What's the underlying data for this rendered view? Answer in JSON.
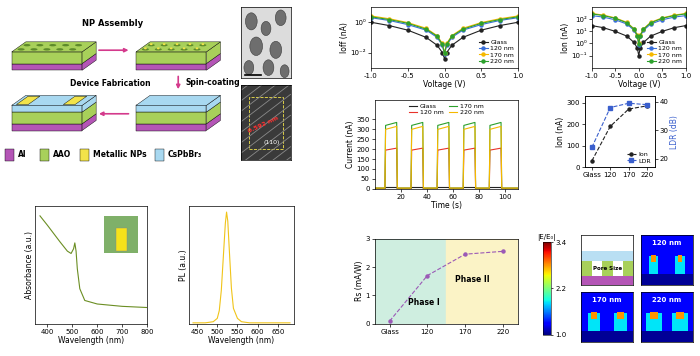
{
  "schematic": {
    "steps": [
      "NP Assembly",
      "Spin-coating",
      "Device Fabrication"
    ],
    "legend": [
      {
        "label": "Al",
        "color": "#b455b6"
      },
      {
        "label": "AAO",
        "color": "#a8d05a"
      },
      {
        "label": "Metallic NPs",
        "color": "#f2e34a"
      },
      {
        "label": "CsPbBr₃",
        "color": "#a8d8f0"
      }
    ]
  },
  "tem": {
    "spacing": "0.592 nm",
    "plane": "(110)"
  },
  "chart_data": [
    {
      "type": "line",
      "x_label": "Wavelength (nm)",
      "y_label": "Absorbance (a.u.)",
      "x": [
        370,
        400,
        450,
        480,
        495,
        505,
        510,
        515,
        520,
        530,
        550,
        600,
        700,
        800
      ],
      "values": [
        0.92,
        0.84,
        0.7,
        0.62,
        0.6,
        0.64,
        0.69,
        0.62,
        0.47,
        0.3,
        0.2,
        0.17,
        0.15,
        0.14
      ],
      "color": "#6b8e23",
      "xlim": [
        350,
        800
      ],
      "xticks": [
        400,
        500,
        600,
        700,
        800
      ],
      "ylim": [
        0,
        1
      ],
      "tick_labels": "x"
    },
    {
      "type": "line",
      "x_label": "Wavelength (nm)",
      "y_label": "PL (a.u.)",
      "x": [
        440,
        470,
        490,
        500,
        505,
        510,
        515,
        520,
        523,
        526,
        530,
        535,
        540,
        550,
        560,
        580,
        620,
        680
      ],
      "values": [
        0.01,
        0.01,
        0.02,
        0.05,
        0.12,
        0.3,
        0.6,
        0.9,
        1.0,
        0.92,
        0.65,
        0.32,
        0.14,
        0.05,
        0.02,
        0.01,
        0.01,
        0.01
      ],
      "color": "#f0c419",
      "xlim": [
        430,
        690
      ],
      "xticks": [
        450,
        500,
        550,
        600,
        650
      ],
      "ylim": [
        0,
        1.05
      ],
      "tick_labels": "x"
    },
    {
      "type": "line",
      "x_label": "Voltage (V)",
      "y_label": "Ioff (nA)",
      "log": "y",
      "legend": "lower right",
      "x": [
        -1.0,
        -0.75,
        -0.5,
        -0.25,
        -0.1,
        -0.03,
        0.0,
        0.03,
        0.1,
        0.25,
        0.5,
        0.75,
        1.0
      ],
      "series": [
        {
          "name": "Glass",
          "color": "#222222",
          "values": [
            1.0,
            0.6,
            0.3,
            0.1,
            0.03,
            0.01,
            0.004,
            0.01,
            0.03,
            0.1,
            0.3,
            0.6,
            1.0
          ]
        },
        {
          "name": "120 nm",
          "color": "#3a6fd8",
          "values": [
            2.0,
            1.3,
            0.7,
            0.3,
            0.1,
            0.03,
            0.008,
            0.03,
            0.1,
            0.3,
            0.7,
            1.3,
            2.0
          ]
        },
        {
          "name": "170 nm",
          "color": "#f5b800",
          "values": [
            2.6,
            1.7,
            0.95,
            0.4,
            0.13,
            0.04,
            0.01,
            0.04,
            0.13,
            0.4,
            0.95,
            1.7,
            2.6
          ]
        },
        {
          "name": "220 nm",
          "color": "#2ca02c",
          "values": [
            2.3,
            1.5,
            0.85,
            0.35,
            0.12,
            0.035,
            0.009,
            0.035,
            0.12,
            0.35,
            0.85,
            1.5,
            2.3
          ]
        }
      ],
      "marker": "circle",
      "line_style": "solid",
      "xlim": [
        -1.0,
        1.0
      ],
      "xticks": [
        -1.0,
        -0.5,
        0.0,
        0.5,
        1.0
      ],
      "ylim": [
        0.001,
        10
      ],
      "yticks": [
        {
          "value": 0.01,
          "label": "10⁻²"
        },
        {
          "value": 1,
          "label": "10⁰"
        }
      ]
    },
    {
      "type": "line",
      "x_label": "Voltage (V)",
      "y_label": "Ion (nA)",
      "log": "y",
      "legend": "lower right",
      "x": [
        -1.0,
        -0.75,
        -0.5,
        -0.25,
        -0.1,
        -0.03,
        0.0,
        0.03,
        0.1,
        0.25,
        0.5,
        0.75,
        1.0
      ],
      "series": [
        {
          "name": "Glass",
          "color": "#222222",
          "values": [
            30,
            20,
            10,
            4,
            1.2,
            0.4,
            0.1,
            0.4,
            1.2,
            4,
            10,
            20,
            30
          ]
        },
        {
          "name": "120 nm",
          "color": "#3a6fd8",
          "values": [
            200,
            150,
            90,
            40,
            12,
            4,
            0.8,
            4,
            12,
            40,
            90,
            150,
            200
          ]
        },
        {
          "name": "170 nm",
          "color": "#f5b800",
          "values": [
            300,
            220,
            130,
            55,
            16,
            5,
            1.0,
            5,
            16,
            55,
            130,
            220,
            300
          ]
        },
        {
          "name": "220 nm",
          "color": "#2ca02c",
          "values": [
            280,
            200,
            120,
            50,
            15,
            4.5,
            0.9,
            4.5,
            15,
            50,
            120,
            200,
            280
          ]
        }
      ],
      "marker": "circle",
      "line_style": "solid",
      "xlim": [
        -1.0,
        1.0
      ],
      "xticks": [
        -1.0,
        -0.5,
        0.0,
        0.5,
        1.0
      ],
      "ylim": [
        0.01,
        1000
      ],
      "yticks": [
        {
          "value": 0.1,
          "label": "10⁻¹"
        },
        {
          "value": 1,
          "label": "10⁰"
        },
        {
          "value": 10,
          "label": "10¹"
        },
        {
          "value": 100,
          "label": "10²"
        }
      ]
    },
    {
      "type": "line",
      "x_label": "Time (s)",
      "y_label": "Current (nA)",
      "legend": "upper center",
      "x": [
        0,
        8,
        8.5,
        17,
        17.5,
        28,
        28.5,
        37,
        37.5,
        48,
        48.5,
        57,
        57.5,
        68,
        68.5,
        77,
        77.5,
        88,
        88.5,
        97,
        97.5,
        110
      ],
      "series": [
        {
          "name": "Glass",
          "color": "#222222",
          "values": [
            1,
            1,
            6,
            6,
            1,
            1,
            6,
            6,
            1,
            1,
            6,
            6,
            1,
            1,
            6,
            6,
            1,
            1,
            6,
            6,
            1,
            1
          ]
        },
        {
          "name": "120 nm",
          "color": "#e8332a",
          "values": [
            2,
            2,
            195,
            205,
            2,
            2,
            195,
            205,
            2,
            2,
            195,
            205,
            2,
            2,
            195,
            205,
            2,
            2,
            195,
            205,
            2,
            2
          ]
        },
        {
          "name": "170 nm",
          "color": "#2ca02c",
          "values": [
            3,
            3,
            320,
            335,
            3,
            3,
            320,
            335,
            3,
            3,
            320,
            335,
            3,
            3,
            320,
            335,
            3,
            3,
            320,
            335,
            3,
            3
          ]
        },
        {
          "name": "220 nm",
          "color": "#f5b800",
          "values": [
            3,
            3,
            300,
            315,
            3,
            3,
            300,
            315,
            3,
            3,
            300,
            315,
            3,
            3,
            300,
            315,
            3,
            3,
            300,
            315,
            3,
            3
          ]
        }
      ],
      "marker": "none",
      "line_style": "solid",
      "xlim": [
        0,
        110
      ],
      "xticks": [
        20,
        40,
        60,
        80,
        100
      ],
      "ylim": [
        0,
        450
      ],
      "yticks": [
        0,
        50,
        100,
        150,
        200,
        250,
        300,
        350
      ]
    },
    {
      "type": "line",
      "y_label": "Ion (nA)",
      "y2_label": "LDR (dB)",
      "legend": "lower right",
      "categories": [
        "Glass",
        "120",
        "170",
        "220"
      ],
      "series": [
        {
          "name": "Ion",
          "color": "#222222",
          "marker": "circle",
          "line_style": "dashed",
          "values": [
            30,
            190,
            270,
            285
          ]
        },
        {
          "name": "LDR",
          "color": "#3a5fcd",
          "marker": "square",
          "line_style": "dashed",
          "axis": "y2",
          "values": [
            24,
            38,
            39.5,
            39
          ]
        }
      ],
      "ylim": [
        0,
        330
      ],
      "yticks": [
        0,
        100,
        200,
        300
      ],
      "y2lim": [
        17,
        42
      ],
      "y2ticks": [
        20,
        30,
        40
      ]
    },
    {
      "type": "line",
      "y_label": "Rs (mA/W)",
      "categories": [
        "Glass",
        "120",
        "170",
        "220"
      ],
      "values": [
        0.1,
        1.7,
        2.45,
        2.55
      ],
      "color": "#9b59b6",
      "marker": "circle",
      "line_style": "dashed",
      "ylim": [
        0,
        3
      ],
      "yticks": [
        0,
        1,
        2,
        3
      ],
      "annotations": [
        "Phase I",
        "Phase II"
      ]
    }
  ],
  "field_maps": {
    "colorbar": {
      "label": "|E/E₀|",
      "range": [
        1.0,
        3.4
      ],
      "ticks": [
        1.0,
        2.2,
        3.4
      ]
    },
    "panels": [
      "Pore Size",
      "120 nm",
      "170 nm",
      "220 nm"
    ]
  }
}
